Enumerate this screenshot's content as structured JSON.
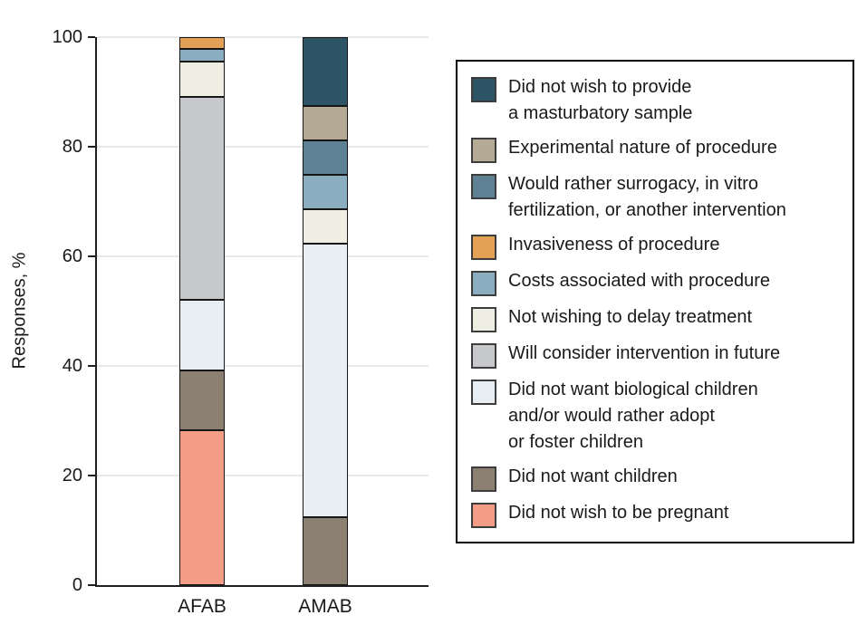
{
  "chart_data": {
    "type": "bar",
    "subtype": "stacked-vertical",
    "title": "",
    "ylabel": "Responses, %",
    "xlabel": "",
    "ylim": [
      0,
      100
    ],
    "yticks": [
      0,
      20,
      40,
      60,
      80,
      100
    ],
    "grid": true,
    "legend_position": "right",
    "categories": [
      "AFAB",
      "AMAB"
    ],
    "series": [
      {
        "name": "Did not wish to provide a masturbatory sample",
        "label_lines": "Did not wish to provide\na masturbatory sample",
        "color": "#2e5566",
        "values": [
          0,
          12.5
        ]
      },
      {
        "name": "Experimental nature of procedure",
        "label_lines": "Experimental nature of procedure",
        "color": "#b4aa95",
        "values": [
          0,
          6.3
        ]
      },
      {
        "name": "Would rather surrogacy, in vitro fertilization, or another intervention",
        "label_lines": "Would rather surrogacy, in vitro\nfertilization, or another intervention",
        "color": "#5e8193",
        "values": [
          0,
          6.3
        ]
      },
      {
        "name": "Invasiveness of procedure",
        "label_lines": "Invasiveness of procedure",
        "color": "#e3a156",
        "values": [
          2.2,
          0
        ]
      },
      {
        "name": "Costs associated with procedure",
        "label_lines": "Costs associated with procedure",
        "color": "#8badc0",
        "values": [
          2.2,
          6.3
        ]
      },
      {
        "name": "Not wishing to delay treatment",
        "label_lines": "Not wishing to delay treatment",
        "color": "#efeee3",
        "values": [
          6.5,
          6.3
        ]
      },
      {
        "name": "Will consider intervention in future",
        "label_lines": "Will consider intervention in future",
        "color": "#c7c8cc",
        "values": [
          37.0,
          0
        ]
      },
      {
        "name": "Did not want biological children and/or would rather adopt or foster children",
        "label_lines": "Did not want biological children\nand/or would rather adopt\nor foster children",
        "color": "#e7eff4",
        "values": [
          13.0,
          50.0
        ]
      },
      {
        "name": "Did not want children",
        "label_lines": "Did not want children",
        "color": "#8b8071",
        "values": [
          10.9,
          12.5
        ]
      },
      {
        "name": "Did not wish to be pregnant",
        "label_lines": "Did not wish to be pregnant",
        "color": "#f39c86",
        "values": [
          28.3,
          0
        ]
      }
    ]
  },
  "colors": {
    "axis": "#1f1f1f",
    "gridline": "#e8e8e8",
    "segment_border": "#161616",
    "legend_border": "#000000",
    "background": "#ffffff"
  }
}
